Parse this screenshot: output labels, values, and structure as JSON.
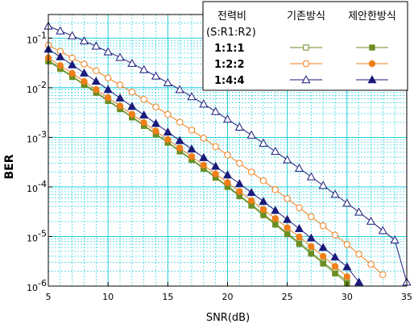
{
  "chart_data": {
    "type": "line",
    "xlabel": "SNR(dB)",
    "ylabel": "BER",
    "xlim": [
      5,
      35
    ],
    "ylim": [
      1e-06,
      0.3
    ],
    "yscale": "log",
    "x_ticks": [
      "5",
      "10",
      "15",
      "20",
      "25",
      "30",
      "35"
    ],
    "y_ticks": [
      {
        "base": "10",
        "exp": "-6"
      },
      {
        "base": "10",
        "exp": "-5"
      },
      {
        "base": "10",
        "exp": "-4"
      },
      {
        "base": "10",
        "exp": "-3"
      },
      {
        "base": "10",
        "exp": "-2"
      },
      {
        "base": "10",
        "exp": "-1"
      }
    ],
    "grid": true,
    "legend": {
      "placement": "top-right",
      "header": [
        "전력비",
        "기존방식",
        "제안한방식"
      ],
      "subheader": "(S:R1:R2)",
      "rows": [
        "1:1:1",
        "1:2:2",
        "1:4:4"
      ]
    },
    "colors": {
      "green": "#6b8e23",
      "orange": "#f07f1a",
      "navy": "#1a1a7a",
      "grid": "#00c8d8"
    },
    "series": [
      {
        "name": "1:1:1",
        "variant": "기존방식",
        "marker": "square-open",
        "color": "#6b8e23",
        "x": [
          5,
          6,
          7,
          8,
          9,
          10,
          11,
          12,
          13,
          14,
          15,
          16,
          17,
          18,
          19,
          20,
          21,
          22,
          23,
          24,
          25,
          26,
          27,
          28,
          29,
          30
        ],
        "y": [
          0.036,
          0.025,
          0.017,
          0.0118,
          0.0082,
          0.0056,
          0.0038,
          0.0026,
          0.00175,
          0.00118,
          0.0008,
          0.00054,
          0.00036,
          0.00024,
          0.000158,
          0.000104,
          6.8e-05,
          4.4e-05,
          2.85e-05,
          1.83e-05,
          1.17e-05,
          7.5e-06,
          4.8e-06,
          3.05e-06,
          1.95e-06,
          1.25e-06
        ]
      },
      {
        "name": "1:1:1",
        "variant": "제안한방식",
        "marker": "square-filled",
        "color": "#6b8e23",
        "x": [
          5,
          6,
          7,
          8,
          9,
          10,
          11,
          12,
          13,
          14,
          15,
          16,
          17,
          18,
          19,
          20,
          21,
          22,
          23,
          24,
          25,
          26,
          27,
          28,
          29,
          30
        ],
        "y": [
          0.034,
          0.024,
          0.0165,
          0.0114,
          0.0079,
          0.0054,
          0.0037,
          0.00252,
          0.0017,
          0.00115,
          0.00078,
          0.00052,
          0.00035,
          0.000232,
          0.000153,
          0.0001,
          6.5e-05,
          4.2e-05,
          2.7e-05,
          1.74e-05,
          1.11e-05,
          7.1e-06,
          4.5e-06,
          2.85e-06,
          1.8e-06,
          1.15e-06
        ]
      },
      {
        "name": "1:2:2",
        "variant": "기존방식",
        "marker": "circle-open",
        "color": "#f07f1a",
        "x": [
          5,
          6,
          7,
          8,
          9,
          10,
          11,
          12,
          13,
          14,
          15,
          16,
          17,
          18,
          19,
          20,
          21,
          22,
          23,
          24,
          25,
          26,
          27,
          28,
          29,
          30,
          31,
          32,
          33
        ],
        "y": [
          0.072,
          0.054,
          0.04,
          0.03,
          0.022,
          0.0158,
          0.0114,
          0.0082,
          0.0058,
          0.0041,
          0.0029,
          0.00202,
          0.0014,
          0.00096,
          0.00065,
          0.00044,
          0.0003,
          0.0002,
          0.000133,
          8.8e-05,
          5.8e-05,
          3.8e-05,
          2.5e-05,
          1.64e-05,
          1.07e-05,
          6.9e-06,
          4.4e-06,
          2.75e-06,
          1.7e-06
        ]
      },
      {
        "name": "1:2:2",
        "variant": "제안한방식",
        "marker": "circle-filled",
        "color": "#f07f1a",
        "x": [
          5,
          6,
          7,
          8,
          9,
          10,
          11,
          12,
          13,
          14,
          15,
          16,
          17,
          18,
          19,
          20,
          21,
          22,
          23,
          24,
          25,
          26,
          27,
          28,
          29,
          30
        ],
        "y": [
          0.04,
          0.028,
          0.0195,
          0.0134,
          0.0092,
          0.0063,
          0.0043,
          0.00292,
          0.00198,
          0.00134,
          0.0009,
          0.00061,
          0.00041,
          0.000274,
          0.000183,
          0.000122,
          8.1e-05,
          5.3e-05,
          3.5e-05,
          2.3e-05,
          1.5e-05,
          9.8e-06,
          6.3e-06,
          4e-06,
          2.5e-06,
          1.55e-06
        ]
      },
      {
        "name": "1:4:4",
        "variant": "기존방식",
        "marker": "triangle-open",
        "color": "#1a1a7a",
        "x": [
          5,
          6,
          7,
          8,
          9,
          10,
          11,
          12,
          13,
          14,
          15,
          16,
          17,
          18,
          19,
          20,
          21,
          22,
          23,
          24,
          25,
          26,
          27,
          28,
          29,
          30,
          31,
          32,
          33,
          34,
          35
        ],
        "y": [
          0.175,
          0.14,
          0.112,
          0.088,
          0.069,
          0.053,
          0.041,
          0.031,
          0.0232,
          0.0172,
          0.0126,
          0.0092,
          0.0066,
          0.0047,
          0.00332,
          0.00232,
          0.00161,
          0.00111,
          0.00076,
          0.00052,
          0.000352,
          0.000238,
          0.00016,
          0.000107,
          7.1e-05,
          4.7e-05,
          3.1e-05,
          2.03e-05,
          1.32e-05,
          8.5e-06,
          1.2e-06
        ]
      },
      {
        "name": "1:4:4",
        "variant": "제안한방식",
        "marker": "triangle-filled",
        "color": "#1a1a7a",
        "x": [
          5,
          6,
          7,
          8,
          9,
          10,
          11,
          12,
          13,
          14,
          15,
          16,
          17,
          18,
          19,
          20,
          21,
          22,
          23,
          24,
          25,
          26,
          27,
          28,
          29,
          30,
          31
        ],
        "y": [
          0.06,
          0.042,
          0.029,
          0.0198,
          0.0135,
          0.0092,
          0.0062,
          0.0042,
          0.00282,
          0.0019,
          0.00128,
          0.00086,
          0.00058,
          0.00039,
          0.00026,
          0.000174,
          0.000116,
          7.7e-05,
          5.1e-05,
          3.35e-05,
          2.2e-05,
          1.44e-05,
          9.3e-06,
          6e-06,
          3.85e-06,
          2.45e-06,
          1.2e-06
        ]
      }
    ]
  }
}
